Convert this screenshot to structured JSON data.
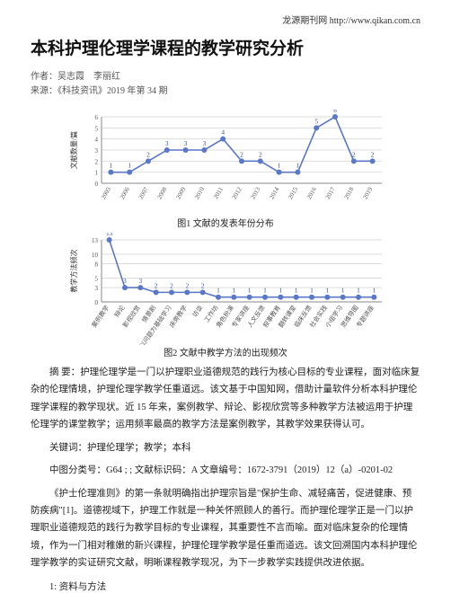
{
  "header": {
    "site_text": "龙源期刊网  http://www.qikan.com.cn"
  },
  "title": "本科护理伦理学课程的教学研究分析",
  "authors_line": "作者：吴志霞　李丽红",
  "source_line": "来源：《科技资讯》2019 年第 34 期",
  "chart1": {
    "caption": "图1  文献的发表年份分布",
    "ylabel": "文献数量/篇",
    "years": [
      "2005",
      "2006",
      "2007",
      "2008",
      "2009",
      "2010",
      "2011",
      "2012",
      "2013",
      "2014",
      "2015",
      "2016",
      "2017",
      "2018",
      "2019"
    ],
    "values": [
      1,
      1,
      2,
      3,
      3,
      3,
      4,
      2,
      2,
      1,
      1,
      5,
      6,
      2,
      2
    ],
    "ymin": 0,
    "ymax": 6,
    "ytick_step": 1,
    "line_color": "#5b77c7",
    "point_color": "#5b77c7",
    "value_label_color": "#2f4a8f",
    "grid_color": "#dddddd",
    "axis_color": "#888888",
    "background_color": "#ffffff",
    "label_fontsize": 7,
    "value_fontsize": 7
  },
  "chart2": {
    "caption": "图2  文献中教学方法的出现频次",
    "ylabel": "教学方法频次",
    "categories": [
      "案例教学",
      "辩论",
      "影视欣赏",
      "情景剧",
      "以问题为基础学习",
      "床旁教学",
      "访谈",
      "工作坊",
      "角色扮演",
      "专家讲座",
      "人文反馈",
      "叙事教育",
      "翻转课堂",
      "临床反馈",
      "社会实践",
      "小组学习",
      "思维导图",
      "专题讲座"
    ],
    "values": [
      13,
      3,
      3,
      2,
      2,
      2,
      2,
      1,
      1,
      1,
      1,
      1,
      1,
      1,
      1,
      1,
      1,
      1
    ],
    "ymin": 0,
    "ymax": 13,
    "yticks": [
      0,
      3,
      5,
      8,
      10,
      13
    ],
    "line_color": "#5b77c7",
    "point_color": "#5b77c7",
    "value_label_color": "#2f4a8f",
    "grid_color": "#dddddd",
    "axis_color": "#888888",
    "background_color": "#ffffff",
    "label_fontsize": 7,
    "value_fontsize": 7
  },
  "abstract": "摘  要：护理伦理学是一门以护理职业道德规范的践行为核心目标的专业课程，面对临床复杂的伦理情境，护理伦理学教学任重道远。该文基于中国知网，借助计量软件分析本科护理伦理学课程的教学现状。近 15 年来，案例教学、辩论、影视欣赏等多种教学方法被运用于护理伦理学的课堂教学；运用频率最高的教学方法是案例教学，其教学效果获得认可。",
  "keywords": "关键词：护理伦理学；教学；本科",
  "clc": "中图分类号：G64 ; ; 文献标识码：A 文章编号：1672-3791（2019）12（a）-0201-02",
  "body_para": "《护士伦理准则》的第一条就明确指出护理宗旨是\"保护生命、减轻痛苦，促进健康、预防疾病\"[1]。道德视域下，护理工作就是一种关怀照顾人的善行。而护理伦理学正是一门以护理职业道德规范的践行为教学目标的专业课程，其重要性不言而喻。面对临床复杂的伦理情境，作为一门相对稚嫩的新兴课程，护理伦理学教学是任重而道远。该文回溯国内本科护理伦理学教学的实证研究文献，明晰课程教学现况，为下一步教学实践提供改进依据。",
  "section1": "1: 资料与方法"
}
